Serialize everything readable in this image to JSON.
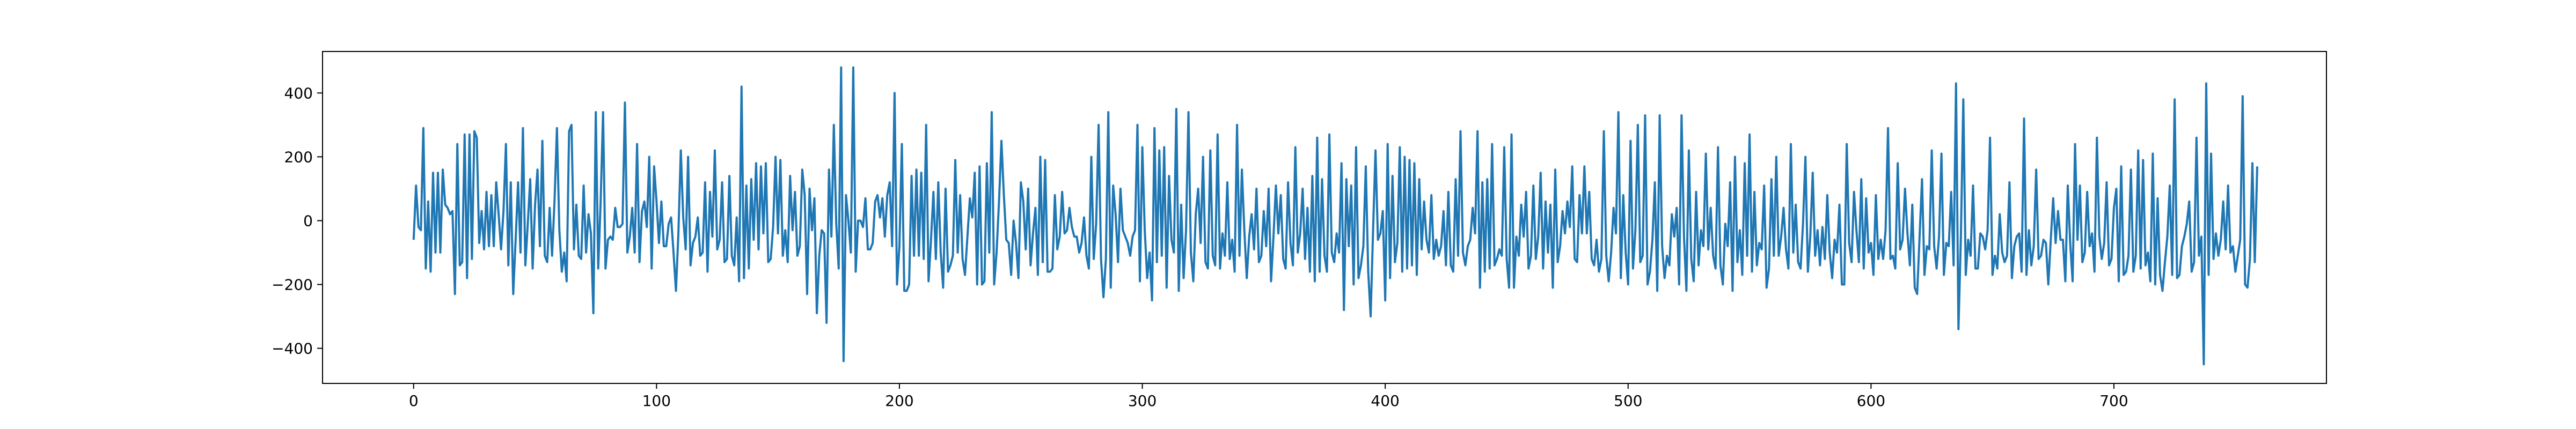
{
  "chart_data": {
    "type": "line",
    "title": "",
    "xlabel": "",
    "ylabel": "",
    "xlim": [
      -37.5,
      787.5
    ],
    "ylim": [
      -510,
      530
    ],
    "x_ticks": [
      0,
      100,
      200,
      300,
      400,
      500,
      600,
      700
    ],
    "y_ticks": [
      -400,
      -200,
      0,
      200,
      400
    ],
    "x_tick_labels": [
      "0",
      "100",
      "200",
      "300",
      "400",
      "500",
      "600",
      "700"
    ],
    "y_tick_labels": [
      "−400",
      "−200",
      "0",
      "200",
      "400"
    ],
    "grid": false,
    "legend": "none",
    "line_color": "#1f77b4",
    "series": [
      {
        "y": [
          -60,
          110,
          -20,
          -30,
          290,
          -150,
          60,
          -160,
          150,
          -100,
          150,
          -100,
          160,
          50,
          40,
          20,
          30,
          -230,
          240,
          -140,
          -130,
          270,
          -180,
          270,
          -120,
          280,
          260,
          -70,
          30,
          -90,
          90,
          -80,
          80,
          -80,
          120,
          20,
          -90,
          30,
          240,
          -140,
          120,
          -230,
          -60,
          120,
          -100,
          290,
          -140,
          -10,
          130,
          -150,
          50,
          160,
          -80,
          250,
          -110,
          -130,
          40,
          -110,
          60,
          290,
          -30,
          -160,
          -100,
          -190,
          280,
          300,
          -90,
          50,
          -110,
          -120,
          110,
          -100,
          20,
          -40,
          -290,
          340,
          -150,
          60,
          340,
          -150,
          -60,
          -50,
          -60,
          40,
          -20,
          -20,
          -10,
          370,
          -100,
          -50,
          40,
          -100,
          240,
          -130,
          30,
          60,
          -20,
          200,
          -150,
          170,
          60,
          -70,
          60,
          -80,
          -80,
          -10,
          10,
          -100,
          -220,
          -40,
          220,
          10,
          -90,
          200,
          -140,
          -70,
          -50,
          10,
          -110,
          -100,
          120,
          -160,
          90,
          -50,
          220,
          -90,
          -60,
          120,
          -130,
          -120,
          140,
          -110,
          -140,
          10,
          -190,
          420,
          -180,
          110,
          -150,
          130,
          -60,
          180,
          -90,
          170,
          -40,
          180,
          -130,
          -120,
          -20,
          200,
          -40,
          190,
          -110,
          -30,
          -130,
          140,
          -30,
          90,
          -110,
          -80,
          160,
          80,
          -230,
          100,
          -30,
          70,
          -290,
          -110,
          -30,
          -40,
          -320,
          160,
          -50,
          300,
          -10,
          -150,
          480,
          -440,
          80,
          0,
          -100,
          480,
          -160,
          0,
          0,
          -20,
          70,
          -90,
          -90,
          -70,
          60,
          80,
          10,
          70,
          -50,
          80,
          120,
          -80,
          400,
          -200,
          -80,
          240,
          -220,
          -220,
          -200,
          140,
          -110,
          160,
          -110,
          150,
          -120,
          300,
          -190,
          -60,
          90,
          -120,
          120,
          -100,
          -210,
          100,
          -160,
          -140,
          -110,
          190,
          -100,
          80,
          -120,
          -170,
          -50,
          70,
          10,
          150,
          -200,
          170,
          -200,
          -190,
          180,
          -100,
          340,
          -200,
          -100,
          60,
          250,
          80,
          -60,
          -70,
          -170,
          0,
          -70,
          -180,
          120,
          60,
          -90,
          100,
          -140,
          -40,
          40,
          -170,
          200,
          -130,
          190,
          -160,
          -160,
          -150,
          80,
          -90,
          -50,
          90,
          -40,
          -30,
          40,
          -20,
          -50,
          -50,
          -100,
          -70,
          10,
          -110,
          -150,
          200,
          -120,
          -10,
          300,
          -120,
          -240,
          -120,
          340,
          -210,
          110,
          20,
          -130,
          100,
          -30,
          -50,
          -70,
          -110,
          -50,
          -30,
          300,
          -190,
          230,
          -30,
          -180,
          -100,
          -250,
          290,
          -130,
          220,
          -110,
          230,
          -210,
          140,
          -60,
          -100,
          350,
          -220,
          50,
          -180,
          -30,
          340,
          -100,
          -190,
          20,
          100,
          -70,
          200,
          -130,
          -150,
          220,
          -110,
          -140,
          270,
          -150,
          -40,
          -110,
          120,
          -120,
          -60,
          -160,
          300,
          -110,
          160,
          -30,
          -180,
          -50,
          20,
          -90,
          100,
          -130,
          -110,
          30,
          -80,
          100,
          -190,
          -50,
          110,
          -40,
          80,
          -120,
          -150,
          120,
          -70,
          -140,
          230,
          -100,
          -40,
          100,
          -120,
          40,
          -160,
          140,
          -190,
          260,
          -160,
          130,
          -110,
          -160,
          270,
          -100,
          -130,
          -40,
          -100,
          180,
          -280,
          130,
          -80,
          110,
          -200,
          230,
          -180,
          -140,
          -80,
          170,
          -160,
          -300,
          -30,
          220,
          -60,
          -40,
          30,
          -250,
          240,
          -180,
          140,
          -130,
          -70,
          230,
          -160,
          200,
          -150,
          190,
          -140,
          180,
          -170,
          130,
          -90,
          60,
          -60,
          -100,
          80,
          -120,
          -60,
          -110,
          -80,
          30,
          -140,
          90,
          -140,
          -160,
          130,
          -110,
          280,
          -100,
          -140,
          -80,
          -60,
          40,
          -40,
          280,
          -210,
          120,
          -160,
          130,
          -150,
          240,
          -140,
          -120,
          -90,
          -110,
          230,
          -120,
          -210,
          270,
          -210,
          -50,
          -110,
          50,
          -50,
          90,
          -150,
          -110,
          110,
          -120,
          -50,
          150,
          -150,
          60,
          -100,
          50,
          -210,
          160,
          -130,
          -80,
          30,
          -40,
          60,
          -20,
          170,
          -120,
          -130,
          80,
          -40,
          170,
          -40,
          90,
          -120,
          -140,
          -60,
          -160,
          -120,
          280,
          -110,
          -190,
          -100,
          40,
          -40,
          340,
          -180,
          80,
          -100,
          -200,
          250,
          -150,
          -30,
          300,
          -130,
          -110,
          330,
          -200,
          -160,
          -60,
          120,
          -220,
          330,
          -80,
          -180,
          -110,
          -140,
          20,
          -50,
          40,
          -200,
          330,
          -50,
          -220,
          220,
          -120,
          -190,
          90,
          -140,
          -30,
          -80,
          210,
          -90,
          40,
          -110,
          -150,
          230,
          -140,
          -200,
          -10,
          -80,
          120,
          -220,
          200,
          -130,
          -30,
          -170,
          180,
          -110,
          270,
          -160,
          90,
          -140,
          -70,
          -90,
          110,
          -210,
          -150,
          130,
          -110,
          200,
          -110,
          -50,
          40,
          -90,
          -150,
          240,
          -100,
          50,
          -130,
          -150,
          -10,
          200,
          -160,
          -50,
          150,
          -110,
          -30,
          -140,
          -20,
          -120,
          80,
          -100,
          -180,
          -60,
          -100,
          50,
          -200,
          -200,
          240,
          -70,
          -130,
          90,
          -30,
          -130,
          130,
          -150,
          70,
          -100,
          -70,
          -170,
          80,
          -120,
          -60,
          -120,
          -30,
          290,
          -120,
          -110,
          -150,
          180,
          -90,
          -60,
          100,
          -40,
          -140,
          50,
          -210,
          -230,
          -50,
          130,
          -170,
          -80,
          -90,
          220,
          -80,
          -150,
          -50,
          210,
          -170,
          -70,
          -80,
          90,
          -140,
          430,
          -340,
          -50,
          380,
          -170,
          -60,
          -110,
          110,
          -150,
          -150,
          -40,
          -50,
          -90,
          -30,
          260,
          -170,
          -110,
          -150,
          20,
          -100,
          -130,
          -110,
          120,
          -180,
          -80,
          -50,
          -40,
          -160,
          320,
          -170,
          -30,
          -140,
          -80,
          160,
          -120,
          -110,
          -60,
          -70,
          -200,
          -60,
          70,
          -70,
          30,
          -60,
          -60,
          -190,
          110,
          -70,
          -190,
          240,
          -60,
          110,
          -130,
          -100,
          90,
          -80,
          -40,
          -160,
          260,
          -50,
          -120,
          -70,
          120,
          -140,
          -120,
          40,
          100,
          -190,
          170,
          -170,
          -160,
          -110,
          160,
          -160,
          -110,
          220,
          -150,
          190,
          -140,
          -100,
          -190,
          210,
          -200,
          70,
          -170,
          -220,
          -130,
          -50,
          110,
          -170,
          380,
          -180,
          -170,
          -80,
          -50,
          -10,
          60,
          -160,
          -130,
          260,
          -110,
          -50,
          -450,
          430,
          -170,
          210,
          -120,
          -40,
          -110,
          -60,
          60,
          -90,
          110,
          -100,
          -80,
          -160,
          -110,
          -60,
          390,
          -200,
          -210,
          -120,
          180,
          -130,
          170
        ]
      }
    ]
  }
}
